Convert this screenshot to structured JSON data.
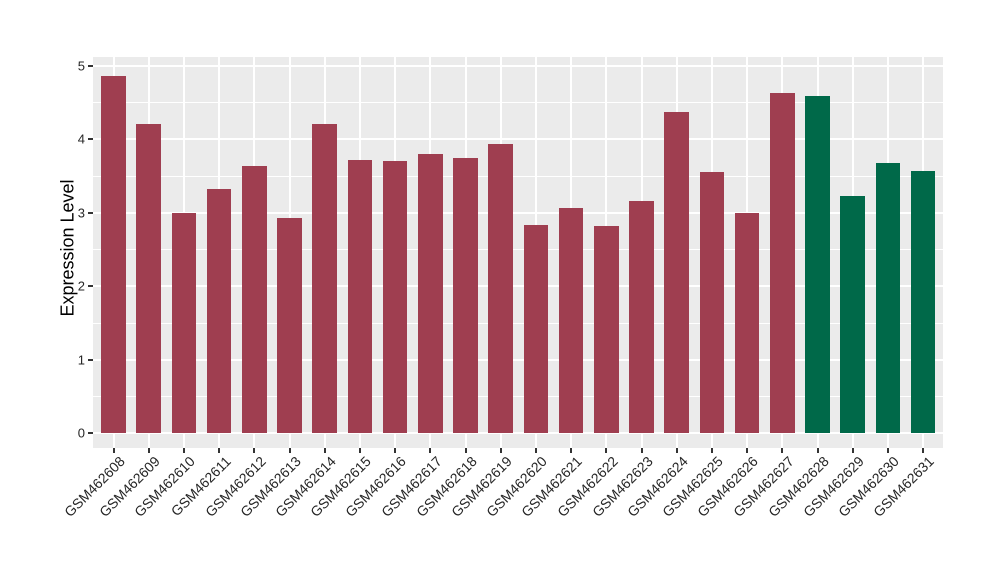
{
  "chart_data": {
    "type": "bar",
    "title": "",
    "xlabel": "",
    "ylabel": "Expression Level",
    "ylim": [
      0,
      5
    ],
    "yticks": [
      0,
      1,
      2,
      3,
      4,
      5
    ],
    "y_minor_ticks": [
      0.5,
      1.5,
      2.5,
      3.5,
      4.5
    ],
    "grid": "major and minor white gridlines on grey panel, vertical lines at bar centers",
    "legend_position": "none",
    "categories": [
      "GSM462608",
      "GSM462609",
      "GSM462610",
      "GSM462611",
      "GSM462612",
      "GSM462613",
      "GSM462614",
      "GSM462615",
      "GSM462616",
      "GSM462617",
      "GSM462618",
      "GSM462619",
      "GSM462620",
      "GSM462621",
      "GSM462622",
      "GSM462623",
      "GSM462624",
      "GSM462625",
      "GSM462626",
      "GSM462627",
      "GSM462628",
      "GSM462629",
      "GSM462630",
      "GSM462631"
    ],
    "values": [
      4.86,
      4.21,
      3.0,
      3.32,
      3.63,
      2.93,
      4.2,
      3.72,
      3.7,
      3.8,
      3.74,
      3.93,
      2.83,
      3.06,
      2.81,
      3.16,
      4.37,
      3.55,
      3.0,
      4.62,
      4.58,
      3.22,
      3.67,
      3.56
    ],
    "color_groups": [
      {
        "color": "#9f3e50",
        "start_index": 0,
        "end_index": 19
      },
      {
        "color": "#006949",
        "start_index": 20,
        "end_index": 23
      }
    ],
    "style": {
      "background": "#ffffff",
      "panel_background": "#ebebeb",
      "grid_color": "#ffffff",
      "tick_color": "#333333",
      "axis_text_color": "#262626",
      "axis_title_color": "#000000"
    }
  }
}
